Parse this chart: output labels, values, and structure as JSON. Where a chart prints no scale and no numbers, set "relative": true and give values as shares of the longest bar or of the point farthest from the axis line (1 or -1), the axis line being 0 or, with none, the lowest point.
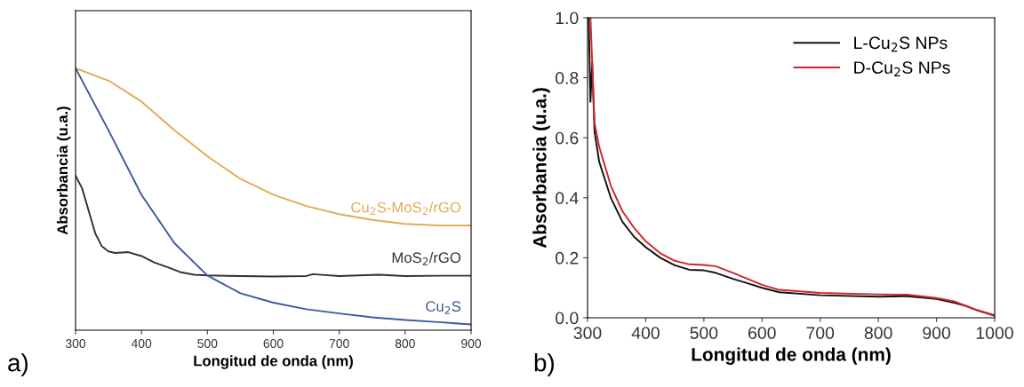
{
  "chart_data": [
    {
      "type": "line",
      "xlabel": "Longitud de onda (nm)",
      "ylabel": "Absorbancia (u.a.)",
      "relative": true,
      "xlim": [
        300,
        900
      ],
      "xticks": [
        300,
        400,
        500,
        600,
        700,
        800,
        900
      ],
      "legend": false,
      "grid": false,
      "annotations": [
        "a)"
      ],
      "series": [
        {
          "name": "Cu$_{2}$S-MoS$_{2}$/rGO",
          "color": "#e0ac5a",
          "x": [
            300,
            350,
            400,
            450,
            500,
            550,
            600,
            650,
            700,
            750,
            800,
            850,
            900
          ],
          "values": [
            1.0,
            0.953,
            0.873,
            0.763,
            0.664,
            0.578,
            0.517,
            0.474,
            0.443,
            0.421,
            0.406,
            0.4,
            0.4
          ]
        },
        {
          "name": "MoS$_{2}$/rGO",
          "color": "#333333",
          "x": [
            300,
            310,
            320,
            330,
            340,
            350,
            360,
            380,
            400,
            420,
            440,
            460,
            480,
            500,
            550,
            600,
            650,
            660,
            700,
            760,
            800,
            850,
            900
          ],
          "values": [
            0.59,
            0.541,
            0.455,
            0.369,
            0.32,
            0.301,
            0.295,
            0.298,
            0.283,
            0.258,
            0.24,
            0.221,
            0.212,
            0.209,
            0.207,
            0.205,
            0.207,
            0.214,
            0.207,
            0.212,
            0.207,
            0.208,
            0.208
          ]
        },
        {
          "name": "Cu$_{2}$S",
          "color": "#3d5a9e",
          "x": [
            300,
            350,
            400,
            450,
            500,
            550,
            600,
            650,
            700,
            750,
            800,
            850,
            900
          ],
          "values": [
            1.0,
            0.763,
            0.517,
            0.332,
            0.209,
            0.141,
            0.105,
            0.08,
            0.064,
            0.049,
            0.039,
            0.031,
            0.022
          ]
        }
      ]
    },
    {
      "type": "line",
      "xlabel": "Longitud de onda (nm)",
      "ylabel": "Absorbancia (u.a.)",
      "xlim": [
        300,
        1000
      ],
      "ylim": [
        0,
        1.0
      ],
      "xticks": [
        300,
        400,
        500,
        600,
        700,
        800,
        900,
        1000
      ],
      "yticks": [
        {
          "value": 0,
          "label": "0.0"
        },
        0.2,
        0.4,
        0.6,
        0.8,
        {
          "value": 1,
          "label": "1.0"
        }
      ],
      "legend": "top right",
      "grid": false,
      "annotations": [
        "b)"
      ],
      "series": [
        {
          "name": "L-Cu$_{2}$S NPs",
          "color": "#111111",
          "x": [
            302,
            305,
            308,
            312,
            320,
            340,
            360,
            380,
            400,
            425,
            450,
            475,
            500,
            520,
            550,
            575,
            600,
            630,
            700,
            800,
            850,
            900,
            930,
            950,
            970,
            1000
          ],
          "values": [
            1.0,
            0.72,
            0.85,
            0.62,
            0.52,
            0.4,
            0.32,
            0.27,
            0.235,
            0.2,
            0.175,
            0.16,
            0.158,
            0.15,
            0.13,
            0.115,
            0.1,
            0.085,
            0.075,
            0.07,
            0.072,
            0.063,
            0.05,
            0.04,
            0.025,
            0.007
          ]
        },
        {
          "name": "D-Cu$_{2}$S NPs",
          "color": "#d0262b",
          "x": [
            305,
            312,
            320,
            340,
            360,
            380,
            400,
            425,
            450,
            475,
            500,
            520,
            550,
            575,
            600,
            630,
            700,
            800,
            850,
            900,
            930,
            950,
            970,
            1000
          ],
          "values": [
            1.0,
            0.65,
            0.57,
            0.44,
            0.355,
            0.3,
            0.255,
            0.215,
            0.19,
            0.178,
            0.176,
            0.172,
            0.15,
            0.13,
            0.11,
            0.093,
            0.083,
            0.078,
            0.077,
            0.066,
            0.055,
            0.04,
            0.025,
            0.008
          ]
        }
      ]
    }
  ]
}
